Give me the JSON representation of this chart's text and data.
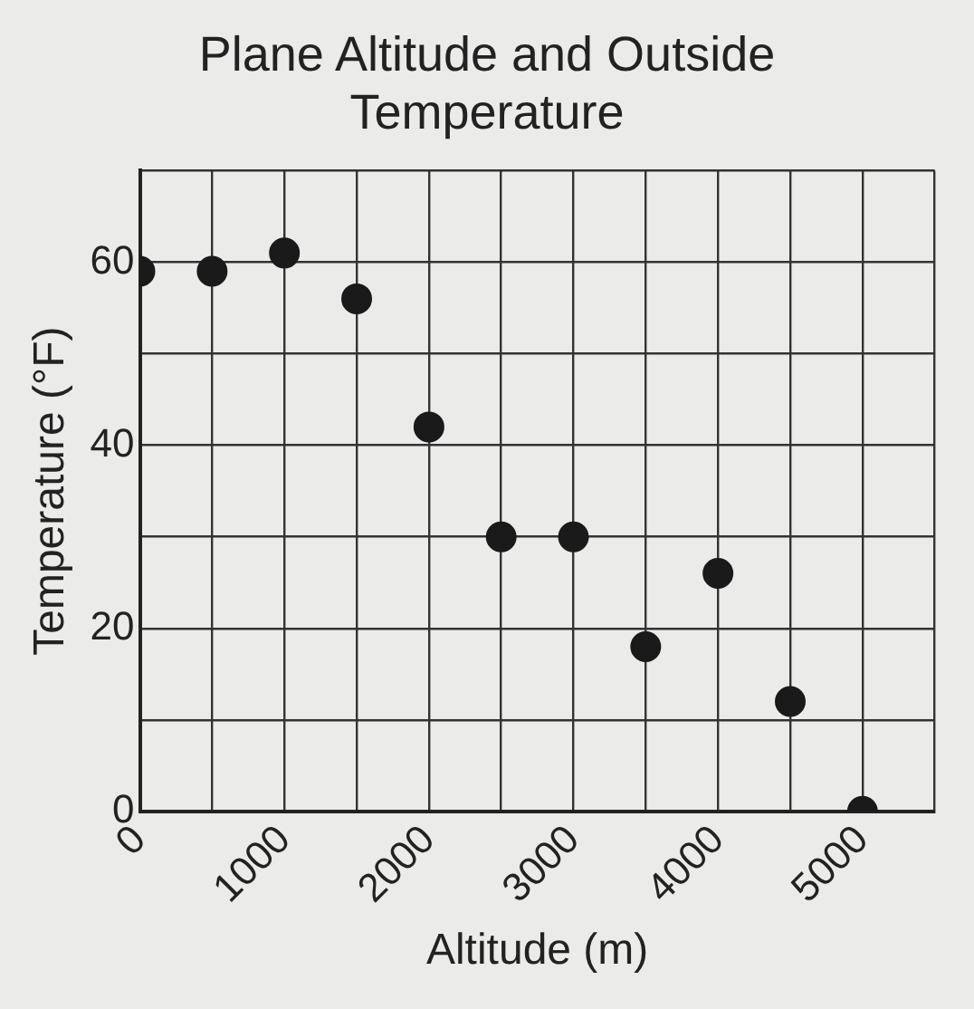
{
  "chart_data": {
    "type": "scatter",
    "title": "Plane Altitude and Outside Temperature",
    "xlabel": "Altitude (m)",
    "ylabel": "Temperature (°F)",
    "x": [
      0,
      500,
      1000,
      1500,
      2000,
      2500,
      3000,
      3500,
      4000,
      4500,
      5000
    ],
    "series": [
      {
        "color": "#1a1a1a",
        "values": [
          59,
          59,
          61,
          56,
          42,
          30,
          30,
          18,
          26,
          12,
          0
        ]
      }
    ],
    "xlim": [
      0,
      5500
    ],
    "ylim": [
      0,
      70
    ],
    "xticks": [
      0,
      {
        "value": 500,
        "label": null
      },
      1000,
      {
        "value": 1500,
        "label": null
      },
      2000,
      {
        "value": 2500,
        "label": null
      },
      3000,
      {
        "value": 3500,
        "label": null
      },
      4000,
      {
        "value": 4500,
        "label": null
      },
      5000,
      {
        "value": 5500,
        "label": null
      }
    ],
    "yticks": [
      0,
      {
        "value": 10,
        "label": null
      },
      20,
      {
        "value": 30,
        "label": null
      },
      40,
      {
        "value": 50,
        "label": null
      },
      60,
      {
        "value": 70,
        "label": null
      }
    ],
    "grid": true,
    "legend": false,
    "marker": "circle"
  }
}
